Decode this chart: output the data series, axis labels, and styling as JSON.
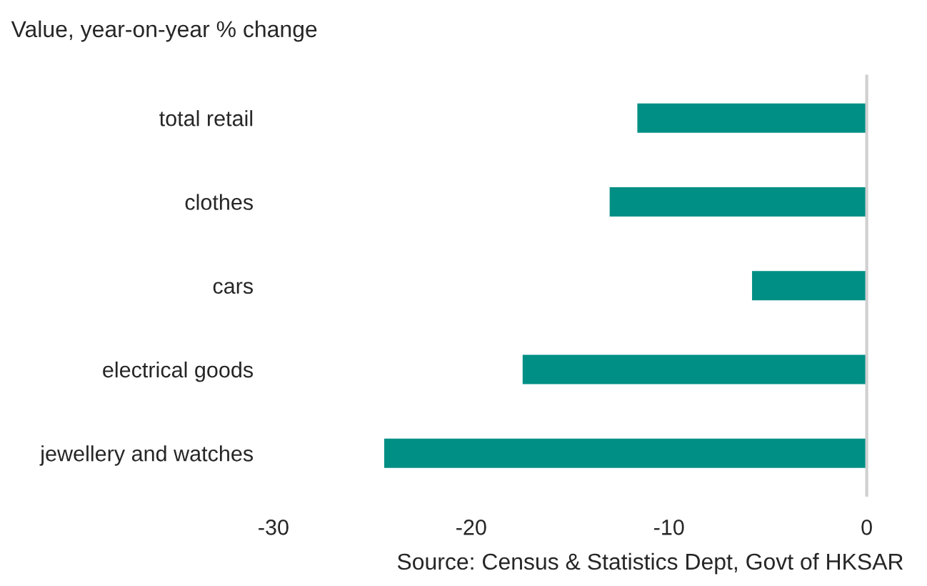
{
  "chart_data": {
    "type": "bar",
    "orientation": "horizontal",
    "title": "Value, year-on-year % change",
    "categories": [
      "total retail",
      "clothes",
      "cars",
      "electrical goods",
      "jewellery and watches"
    ],
    "values": [
      -11.6,
      -13.0,
      -5.8,
      -17.4,
      -24.4
    ],
    "color": "#008f85",
    "xlim": [
      -30,
      0
    ],
    "xticks": [
      -30,
      -20,
      -10,
      0
    ],
    "grid": false,
    "legend": false,
    "annotations": [
      "Source: Census & Statistics Dept, Govt of HKSAR"
    ]
  }
}
